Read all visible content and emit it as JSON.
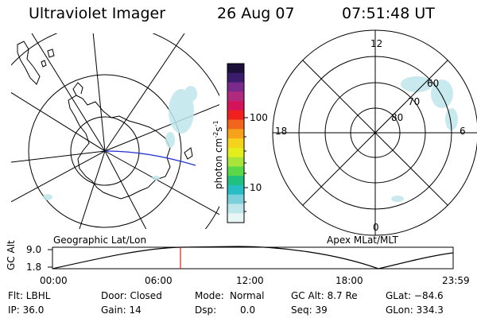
{
  "header": {
    "title": "Ultraviolet Imager",
    "date": "26 Aug 07",
    "time": "07:51:48 UT"
  },
  "left_map": {
    "label": "Geographic Lat/Lon"
  },
  "right_map": {
    "label": "Apex MLat/MLT",
    "mlt_labels": [
      "12",
      "18",
      "6",
      "0"
    ],
    "mlat_labels": [
      "60",
      "70",
      "80"
    ]
  },
  "colorbar": {
    "unit_label": "photon cm",
    "unit_exp1": "-2",
    "unit_s": "s",
    "unit_exp2": "-1",
    "tick_labels": [
      "100",
      "10"
    ],
    "colors": [
      "#1c0f3a",
      "#3a1c6a",
      "#7a2a8a",
      "#b02a80",
      "#d4145a",
      "#f02020",
      "#f2651c",
      "#f6a21a",
      "#f5d21c",
      "#e4ee1c",
      "#a8e43a",
      "#5ad84a",
      "#20c080",
      "#28bcc4",
      "#7cd0dc",
      "#bfe6ea",
      "#e8f6f6"
    ]
  },
  "orbit": {
    "ylabel": "GC Alt",
    "y_ticks": [
      "9.0",
      "1.8"
    ],
    "x_ticks": [
      "00:00",
      "06:00",
      "12:00",
      "18:00",
      "23:59"
    ],
    "current_time_marker": "07:51:48"
  },
  "footer": {
    "row1": {
      "filter": "Flt: LBHL",
      "door": "Door: Closed",
      "mode": "Mode:",
      "mode_value": "Normal",
      "gc_alt": "GC Alt: 8.7 Re",
      "glat": "GLat: −84.6"
    },
    "row2": {
      "ip": "IP: 36.0",
      "gain": "Gain: 14",
      "dsp": "Dsp:",
      "dsp_value": "0.0",
      "seq": "Seq: 39",
      "glon": "GLon: 334.3"
    }
  }
}
